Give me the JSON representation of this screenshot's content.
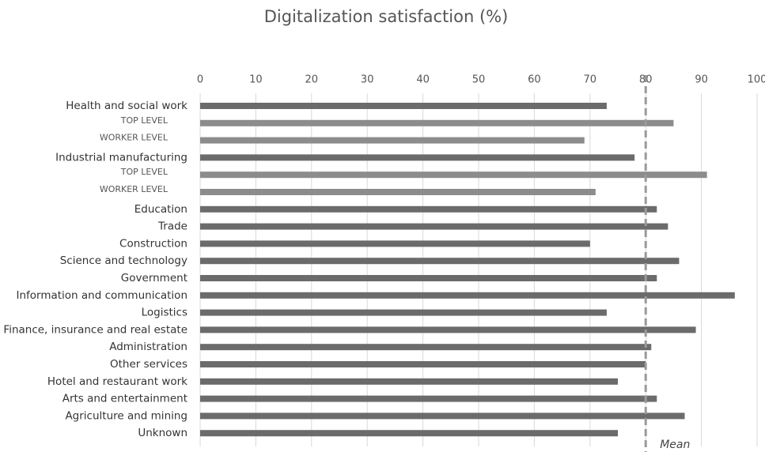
{
  "chart_data": {
    "type": "bar",
    "orientation": "horizontal",
    "title": "Digitalization satisfaction (%)",
    "categories": [
      "Health and social work",
      "TOP LEVEL",
      "WORKER LEVEL",
      "Industrial manufacturing",
      "TOP LEVEL",
      "WORKER LEVEL",
      "Education",
      "Trade",
      "Construction",
      "Science and technology",
      "Government",
      "Information and communication",
      "Logistics",
      "Finance, insurance and real estate",
      "Administration",
      "Other services",
      "Hotel and restaurant work",
      "Arts and entertainment",
      "Agriculture and mining",
      "Unknown"
    ],
    "values": [
      73,
      85,
      69,
      78,
      91,
      71,
      82,
      84,
      70,
      86,
      82,
      96,
      73,
      89,
      81,
      80,
      75,
      82,
      87,
      75
    ],
    "colors": [
      "#6b6b6b",
      "#8c8c8c",
      "#8c8c8c",
      "#6b6b6b",
      "#8c8c8c",
      "#8c8c8c",
      "#6b6b6b",
      "#6b6b6b",
      "#6b6b6b",
      "#6b6b6b",
      "#6b6b6b",
      "#6b6b6b",
      "#6b6b6b",
      "#6b6b6b",
      "#6b6b6b",
      "#6b6b6b",
      "#6b6b6b",
      "#6b6b6b",
      "#6b6b6b",
      "#6b6b6b"
    ],
    "xlim": [
      0,
      100
    ],
    "xticks": [
      0,
      10,
      20,
      30,
      40,
      50,
      60,
      70,
      80,
      90,
      100
    ],
    "grid": true,
    "reference_line": {
      "value": 80,
      "label": "Mean",
      "color": "#9a9a9a"
    }
  }
}
